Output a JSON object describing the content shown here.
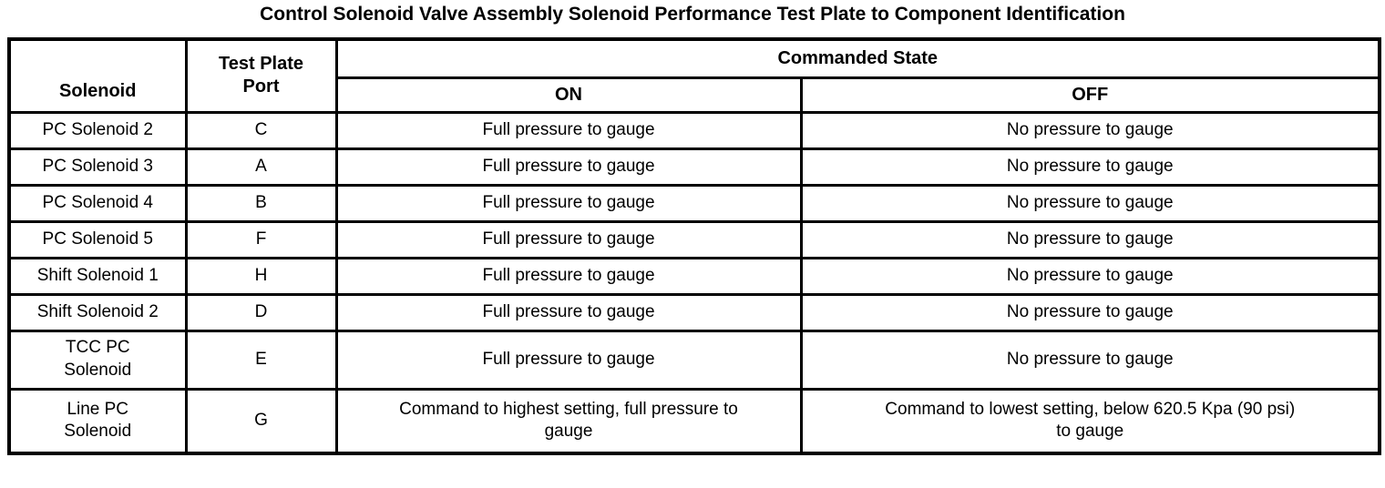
{
  "page_title": "Control Solenoid Valve Assembly Solenoid Performance Test Plate to Component Identification",
  "colors": {
    "background": "#ffffff",
    "text": "#000000",
    "border": "#000000"
  },
  "table": {
    "headers": {
      "solenoid": "Solenoid",
      "test_plate_port": "Test Plate\nPort",
      "commanded_state": "Commanded State",
      "on": "ON",
      "off": "OFF"
    },
    "rows": [
      {
        "solenoid": "PC Solenoid 2",
        "port": "C",
        "on": "Full pressure to gauge",
        "off": "No pressure to gauge"
      },
      {
        "solenoid": "PC Solenoid 3",
        "port": "A",
        "on": "Full pressure to gauge",
        "off": "No pressure to gauge"
      },
      {
        "solenoid": "PC Solenoid 4",
        "port": "B",
        "on": "Full pressure to gauge",
        "off": "No pressure to gauge"
      },
      {
        "solenoid": "PC Solenoid 5",
        "port": "F",
        "on": "Full pressure to gauge",
        "off": "No pressure to gauge"
      },
      {
        "solenoid": "Shift Solenoid 1",
        "port": "H",
        "on": "Full pressure to gauge",
        "off": "No pressure to gauge"
      },
      {
        "solenoid": "Shift Solenoid 2",
        "port": "D",
        "on": "Full pressure to gauge",
        "off": "No pressure to gauge"
      },
      {
        "solenoid": "TCC PC\nSolenoid",
        "port": "E",
        "on": "Full pressure to gauge",
        "off": "No pressure to gauge"
      },
      {
        "solenoid": "Line PC\nSolenoid",
        "port": "G",
        "on": "Command to highest setting, full pressure to\ngauge",
        "off": "Command to lowest setting, below 620.5 Kpa (90 psi)\nto gauge"
      }
    ]
  }
}
